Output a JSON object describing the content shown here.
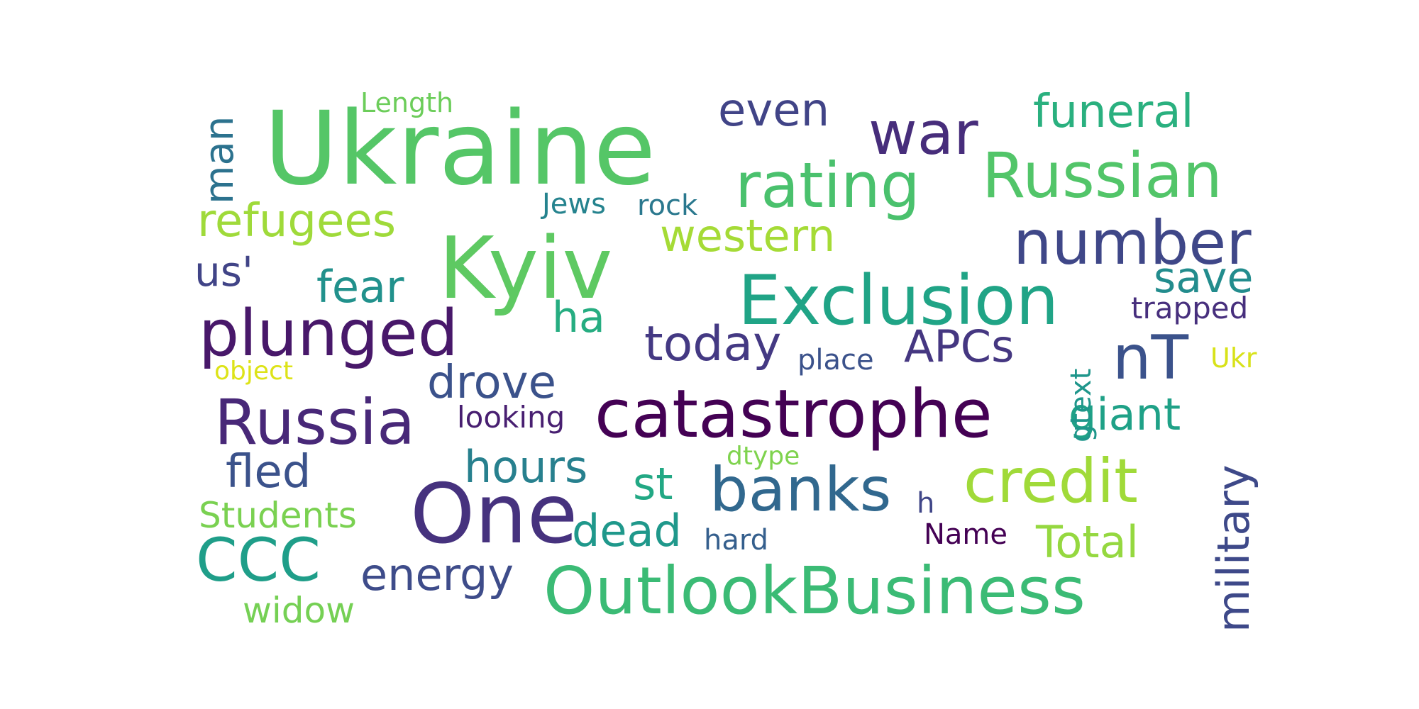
{
  "words": {
    "ukraine": {
      "text": "Ukraine",
      "color": "#55c667"
    },
    "kyiv": {
      "text": "Kyiv",
      "color": "#5ec962"
    },
    "war": {
      "text": "war",
      "color": "#472d7b"
    },
    "rating": {
      "text": "rating",
      "color": "#4ac16d"
    },
    "russian": {
      "text": "Russian",
      "color": "#52c569"
    },
    "number": {
      "text": "number",
      "color": "#3f4788"
    },
    "exclusion": {
      "text": "Exclusion",
      "color": "#20a486"
    },
    "plunged": {
      "text": "plunged",
      "color": "#48186a"
    },
    "catastrophe": {
      "text": "catastrophe",
      "color": "#440154"
    },
    "russia": {
      "text": "Russia",
      "color": "#482878"
    },
    "one": {
      "text": "One",
      "color": "#46327e"
    },
    "banks": {
      "text": "banks",
      "color": "#31688e"
    },
    "credit": {
      "text": "credit",
      "color": "#a0da39"
    },
    "outlookbusiness": {
      "text": "OutlookBusiness",
      "color": "#3bbb75"
    },
    "ccc": {
      "text": "CCC",
      "color": "#1f9e89"
    },
    "military": {
      "text": "military",
      "color": "#3e4989"
    },
    "refugees": {
      "text": "refugees",
      "color": "#9fda3a"
    },
    "funeral": {
      "text": "funeral",
      "color": "#2ab07f"
    },
    "even": {
      "text": "even",
      "color": "#414487"
    },
    "western": {
      "text": "western",
      "color": "#a5db36"
    },
    "today": {
      "text": "today",
      "color": "#443983"
    },
    "apcs": {
      "text": "APCs",
      "color": "#453781"
    },
    "nt": {
      "text": "nT",
      "color": "#3b528b"
    },
    "save": {
      "text": "save",
      "color": "#228c8d"
    },
    "giant": {
      "text": "giant",
      "color": "#1fa187"
    },
    "fear": {
      "text": "fear",
      "color": "#21918c"
    },
    "ha": {
      "text": "ha",
      "color": "#26ad81"
    },
    "drove": {
      "text": "drove",
      "color": "#3b528b"
    },
    "fled": {
      "text": "fled",
      "color": "#3b528b"
    },
    "hours": {
      "text": "hours",
      "color": "#27808e"
    },
    "st": {
      "text": "st",
      "color": "#22a884"
    },
    "dead": {
      "text": "dead",
      "color": "#1f988b"
    },
    "energy": {
      "text": "energy",
      "color": "#3e4c8a"
    },
    "total": {
      "text": "Total",
      "color": "#95d840"
    },
    "man": {
      "text": "man",
      "color": "#2c728e"
    },
    "us": {
      "text": "us'",
      "color": "#414487"
    },
    "students": {
      "text": "Students",
      "color": "#7ad151"
    },
    "widow": {
      "text": "widow",
      "color": "#75d054"
    },
    "length": {
      "text": "Length",
      "color": "#6ccd5a"
    },
    "jews": {
      "text": "Jews",
      "color": "#25838e"
    },
    "rock": {
      "text": "rock",
      "color": "#2a788e"
    },
    "trapped": {
      "text": "trapped",
      "color": "#472f7d"
    },
    "place": {
      "text": "place",
      "color": "#3b528b"
    },
    "object": {
      "text": "object",
      "color": "#dde318"
    },
    "looking": {
      "text": "looking",
      "color": "#481f71"
    },
    "gtext": {
      "text": "gtext",
      "color": "#1f968b"
    },
    "ukr": {
      "text": "Ukr",
      "color": "#d8e219"
    },
    "dtype": {
      "text": "dtype",
      "color": "#7fd34e"
    },
    "h": {
      "text": "h",
      "color": "#404688"
    },
    "hard": {
      "text": "hard",
      "color": "#355f8d"
    },
    "name": {
      "text": "Name",
      "color": "#440154"
    }
  }
}
